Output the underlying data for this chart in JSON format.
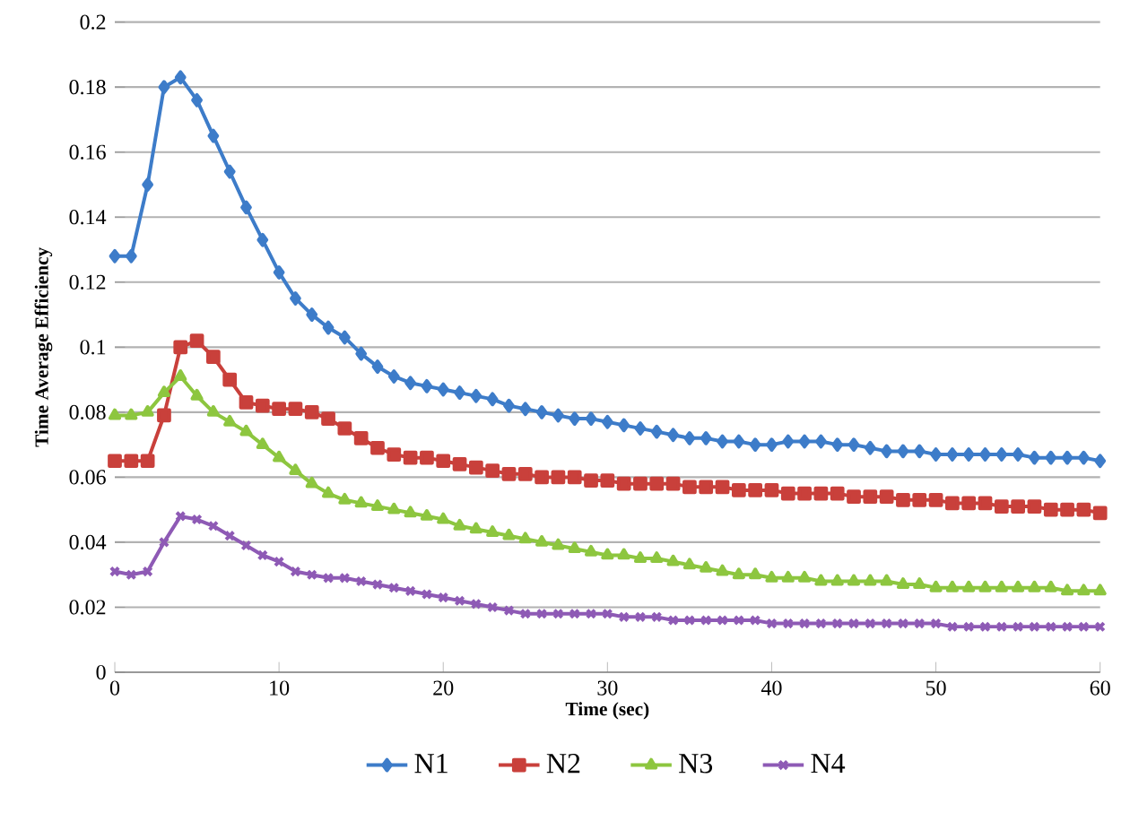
{
  "chart_data": {
    "type": "line",
    "xlabel": "Time (sec)",
    "ylabel": "Time Average Efficiency",
    "x": [
      0,
      1,
      2,
      3,
      4,
      5,
      6,
      7,
      8,
      9,
      10,
      11,
      12,
      13,
      14,
      15,
      16,
      17,
      18,
      19,
      20,
      21,
      22,
      23,
      24,
      25,
      26,
      27,
      28,
      29,
      30,
      31,
      32,
      33,
      34,
      35,
      36,
      37,
      38,
      39,
      40,
      41,
      42,
      43,
      44,
      45,
      46,
      47,
      48,
      49,
      50,
      51,
      52,
      53,
      54,
      55,
      56,
      57,
      58,
      59,
      60
    ],
    "series": [
      {
        "name": "N1",
        "color": "#3d7cc9",
        "marker": "diamond",
        "values": [
          0.128,
          0.128,
          0.15,
          0.18,
          0.183,
          0.176,
          0.165,
          0.154,
          0.143,
          0.133,
          0.123,
          0.115,
          0.11,
          0.106,
          0.103,
          0.098,
          0.094,
          0.091,
          0.089,
          0.088,
          0.087,
          0.086,
          0.085,
          0.084,
          0.082,
          0.081,
          0.08,
          0.079,
          0.078,
          0.078,
          0.077,
          0.076,
          0.075,
          0.074,
          0.073,
          0.072,
          0.072,
          0.071,
          0.071,
          0.07,
          0.07,
          0.071,
          0.071,
          0.071,
          0.07,
          0.07,
          0.069,
          0.068,
          0.068,
          0.068,
          0.067,
          0.067,
          0.067,
          0.067,
          0.067,
          0.067,
          0.066,
          0.066,
          0.066,
          0.066,
          0.065
        ]
      },
      {
        "name": "N2",
        "color": "#c9403b",
        "marker": "square",
        "values": [
          0.065,
          0.065,
          0.065,
          0.079,
          0.1,
          0.102,
          0.097,
          0.09,
          0.083,
          0.082,
          0.081,
          0.081,
          0.08,
          0.078,
          0.075,
          0.072,
          0.069,
          0.067,
          0.066,
          0.066,
          0.065,
          0.064,
          0.063,
          0.062,
          0.061,
          0.061,
          0.06,
          0.06,
          0.06,
          0.059,
          0.059,
          0.058,
          0.058,
          0.058,
          0.058,
          0.057,
          0.057,
          0.057,
          0.056,
          0.056,
          0.056,
          0.055,
          0.055,
          0.055,
          0.055,
          0.054,
          0.054,
          0.054,
          0.053,
          0.053,
          0.053,
          0.052,
          0.052,
          0.052,
          0.051,
          0.051,
          0.051,
          0.05,
          0.05,
          0.05,
          0.049
        ]
      },
      {
        "name": "N3",
        "color": "#8dc63f",
        "marker": "triangle",
        "values": [
          0.079,
          0.079,
          0.08,
          0.086,
          0.091,
          0.085,
          0.08,
          0.077,
          0.074,
          0.07,
          0.066,
          0.062,
          0.058,
          0.055,
          0.053,
          0.052,
          0.051,
          0.05,
          0.049,
          0.048,
          0.047,
          0.045,
          0.044,
          0.043,
          0.042,
          0.041,
          0.04,
          0.039,
          0.038,
          0.037,
          0.036,
          0.036,
          0.035,
          0.035,
          0.034,
          0.033,
          0.032,
          0.031,
          0.03,
          0.03,
          0.029,
          0.029,
          0.029,
          0.028,
          0.028,
          0.028,
          0.028,
          0.028,
          0.027,
          0.027,
          0.026,
          0.026,
          0.026,
          0.026,
          0.026,
          0.026,
          0.026,
          0.026,
          0.025,
          0.025,
          0.025
        ]
      },
      {
        "name": "N4",
        "color": "#8e5ab5",
        "marker": "cross",
        "values": [
          0.031,
          0.03,
          0.031,
          0.04,
          0.048,
          0.047,
          0.045,
          0.042,
          0.039,
          0.036,
          0.034,
          0.031,
          0.03,
          0.029,
          0.029,
          0.028,
          0.027,
          0.026,
          0.025,
          0.024,
          0.023,
          0.022,
          0.021,
          0.02,
          0.019,
          0.018,
          0.018,
          0.018,
          0.018,
          0.018,
          0.018,
          0.017,
          0.017,
          0.017,
          0.016,
          0.016,
          0.016,
          0.016,
          0.016,
          0.016,
          0.015,
          0.015,
          0.015,
          0.015,
          0.015,
          0.015,
          0.015,
          0.015,
          0.015,
          0.015,
          0.015,
          0.014,
          0.014,
          0.014,
          0.014,
          0.014,
          0.014,
          0.014,
          0.014,
          0.014,
          0.014
        ]
      }
    ],
    "xlim": [
      0,
      60
    ],
    "xticks": [
      0,
      10,
      20,
      30,
      40,
      50,
      60
    ],
    "ylim": [
      0,
      0.2
    ],
    "yticks": [
      0,
      0.02,
      0.04,
      0.06,
      0.08,
      0.1,
      0.12,
      0.14,
      0.16,
      0.18,
      0.2
    ],
    "grid": "y",
    "legend": "bottom",
    "line_style": "solid"
  }
}
